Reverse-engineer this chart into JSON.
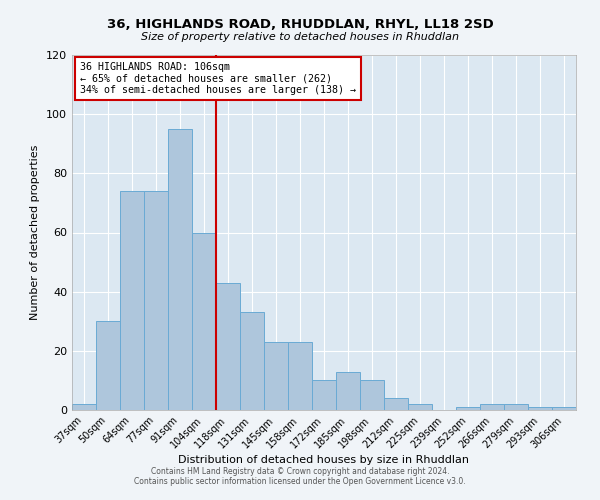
{
  "title": "36, HIGHLANDS ROAD, RHUDDLAN, RHYL, LL18 2SD",
  "subtitle": "Size of property relative to detached houses in Rhuddlan",
  "xlabel": "Distribution of detached houses by size in Rhuddlan",
  "ylabel": "Number of detached properties",
  "categories": [
    "37sqm",
    "50sqm",
    "64sqm",
    "77sqm",
    "91sqm",
    "104sqm",
    "118sqm",
    "131sqm",
    "145sqm",
    "158sqm",
    "172sqm",
    "185sqm",
    "198sqm",
    "212sqm",
    "225sqm",
    "239sqm",
    "252sqm",
    "266sqm",
    "279sqm",
    "293sqm",
    "306sqm"
  ],
  "values": [
    2,
    30,
    74,
    74,
    95,
    60,
    43,
    33,
    23,
    23,
    10,
    13,
    10,
    4,
    2,
    0,
    1,
    2,
    2,
    1,
    1
  ],
  "bar_color": "#aec6dc",
  "bar_edge_color": "#6aaad4",
  "background_color": "#f0f4f8",
  "plot_bg_color": "#dce8f2",
  "vline_x_index": 5.5,
  "vline_color": "#cc0000",
  "annotation_text": "36 HIGHLANDS ROAD: 106sqm\n← 65% of detached houses are smaller (262)\n34% of semi-detached houses are larger (138) →",
  "annotation_box_color": "#cc0000",
  "ylim": [
    0,
    120
  ],
  "yticks": [
    0,
    20,
    40,
    60,
    80,
    100,
    120
  ],
  "footer1": "Contains HM Land Registry data © Crown copyright and database right 2024.",
  "footer2": "Contains public sector information licensed under the Open Government Licence v3.0."
}
